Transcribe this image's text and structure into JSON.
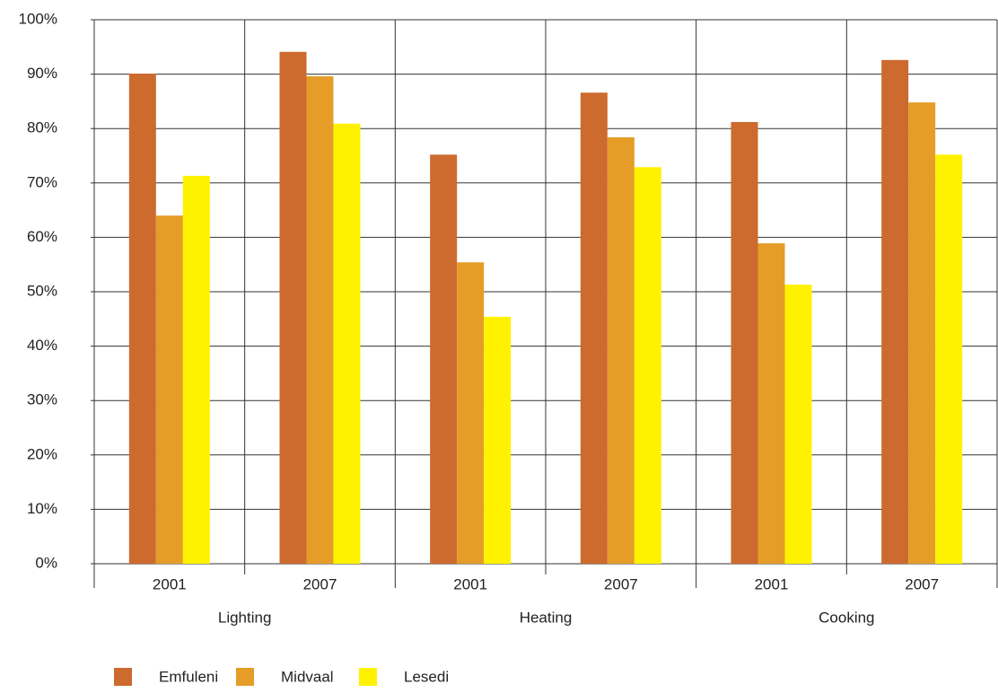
{
  "chart_data": {
    "type": "bar",
    "categories": [
      "2001",
      "2007",
      "2001",
      "2007",
      "2001",
      "2007"
    ],
    "category_groups": [
      "Lighting",
      "Heating",
      "Cooking"
    ],
    "series": [
      {
        "name": "Emfuleni",
        "color": "#cd6a2e",
        "values": [
          90.1,
          94.1,
          75.2,
          86.6,
          81.2,
          92.6
        ]
      },
      {
        "name": "Midvaal",
        "color": "#e59d27",
        "values": [
          64.0,
          89.6,
          55.4,
          78.4,
          58.9,
          84.8
        ]
      },
      {
        "name": "Lesedi",
        "color": "#fff200",
        "values": [
          71.3,
          80.9,
          45.4,
          72.9,
          51.3,
          75.2
        ]
      }
    ],
    "ylim": [
      0,
      100
    ],
    "yticks": [
      {
        "value": 0,
        "label": "0%"
      },
      {
        "value": 10,
        "label": "10%"
      },
      {
        "value": 20,
        "label": "20%"
      },
      {
        "value": 30,
        "label": "30%"
      },
      {
        "value": 40,
        "label": "40%"
      },
      {
        "value": 50,
        "label": "50%"
      },
      {
        "value": 60,
        "label": "60%"
      },
      {
        "value": 70,
        "label": "70%"
      },
      {
        "value": 80,
        "label": "80%"
      },
      {
        "value": 90,
        "label": "90%"
      },
      {
        "value": 100,
        "label": "100%"
      }
    ],
    "grid": true,
    "legend": "bottom"
  }
}
